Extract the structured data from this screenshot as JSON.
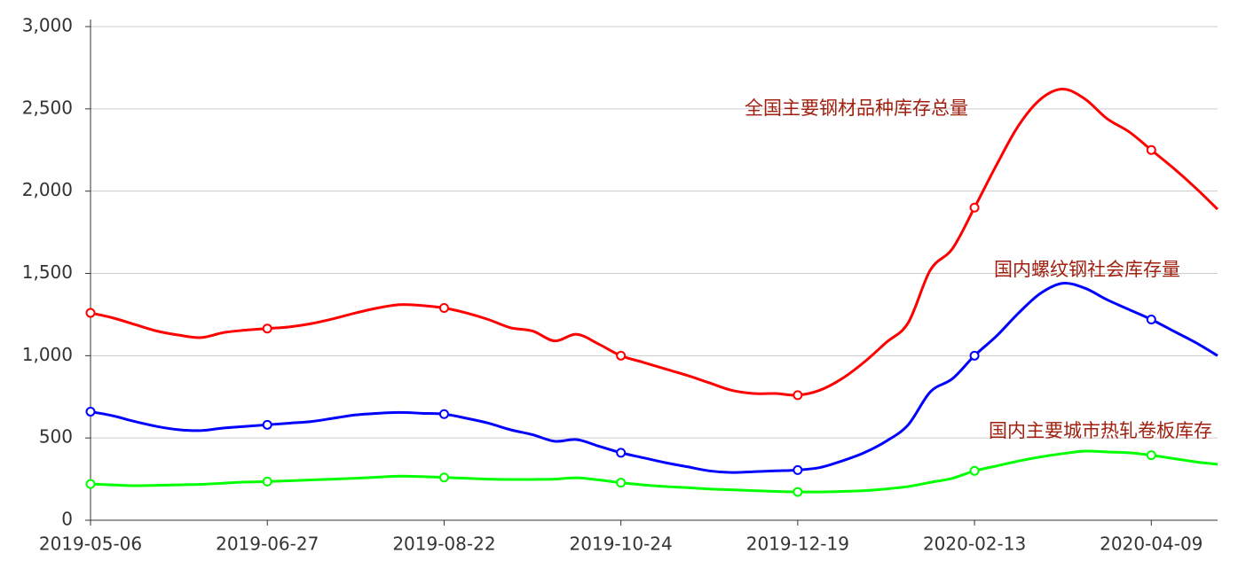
{
  "chart_data": {
    "type": "line",
    "categories": [
      "2019-05-06",
      null,
      null,
      null,
      null,
      null,
      null,
      null,
      "2019-06-27",
      null,
      null,
      null,
      null,
      null,
      null,
      null,
      "2019-08-22",
      null,
      null,
      null,
      null,
      null,
      null,
      null,
      "2019-10-24",
      null,
      null,
      null,
      null,
      null,
      null,
      null,
      "2019-12-19",
      null,
      null,
      null,
      null,
      null,
      null,
      null,
      "2020-02-13",
      null,
      null,
      null,
      null,
      null,
      null,
      null,
      "2020-04-09",
      null,
      null,
      null
    ],
    "series": [
      {
        "name": "全国主要钢材品种库存总量",
        "color": "#ff0000",
        "values": [
          1260,
          1230,
          1190,
          1150,
          1125,
          1110,
          1140,
          1155,
          1165,
          1175,
          1195,
          1225,
          1260,
          1290,
          1310,
          1305,
          1290,
          1260,
          1220,
          1170,
          1150,
          1090,
          1130,
          1070,
          1000,
          960,
          920,
          880,
          835,
          790,
          770,
          770,
          760,
          790,
          860,
          960,
          1080,
          1200,
          1520,
          1650,
          1900,
          2160,
          2400,
          2560,
          2620,
          2560,
          2440,
          2360,
          2250,
          2140,
          2020,
          1890
        ]
      },
      {
        "name": "国内螺纹钢社会库存量",
        "color": "#0000ff",
        "values": [
          660,
          635,
          600,
          570,
          550,
          545,
          560,
          570,
          580,
          590,
          600,
          620,
          640,
          650,
          655,
          650,
          645,
          620,
          590,
          550,
          520,
          480,
          490,
          450,
          410,
          380,
          350,
          325,
          300,
          290,
          295,
          300,
          305,
          320,
          360,
          410,
          480,
          580,
          780,
          860,
          1000,
          1120,
          1260,
          1380,
          1440,
          1410,
          1340,
          1280,
          1220,
          1150,
          1080,
          1000
        ]
      },
      {
        "name": "国内主要城市热轧卷板库存",
        "color": "#00ff00",
        "values": [
          220,
          215,
          210,
          212,
          215,
          218,
          225,
          232,
          235,
          240,
          245,
          250,
          255,
          262,
          268,
          265,
          260,
          255,
          250,
          248,
          248,
          250,
          258,
          245,
          228,
          215,
          205,
          198,
          190,
          185,
          180,
          175,
          172,
          172,
          175,
          180,
          190,
          205,
          230,
          255,
          300,
          330,
          360,
          385,
          405,
          420,
          415,
          410,
          395,
          375,
          355,
          340
        ]
      }
    ],
    "ylim": [
      0,
      3000
    ],
    "yticks": [
      0,
      500,
      {
        "value": 1000,
        "label": "1,000"
      },
      {
        "value": 1500,
        "label": "1,500"
      },
      {
        "value": 2000,
        "label": "2,000"
      },
      {
        "value": 2500,
        "label": "2,500"
      },
      {
        "value": 3000,
        "label": "3,000"
      }
    ],
    "grid": true
  }
}
